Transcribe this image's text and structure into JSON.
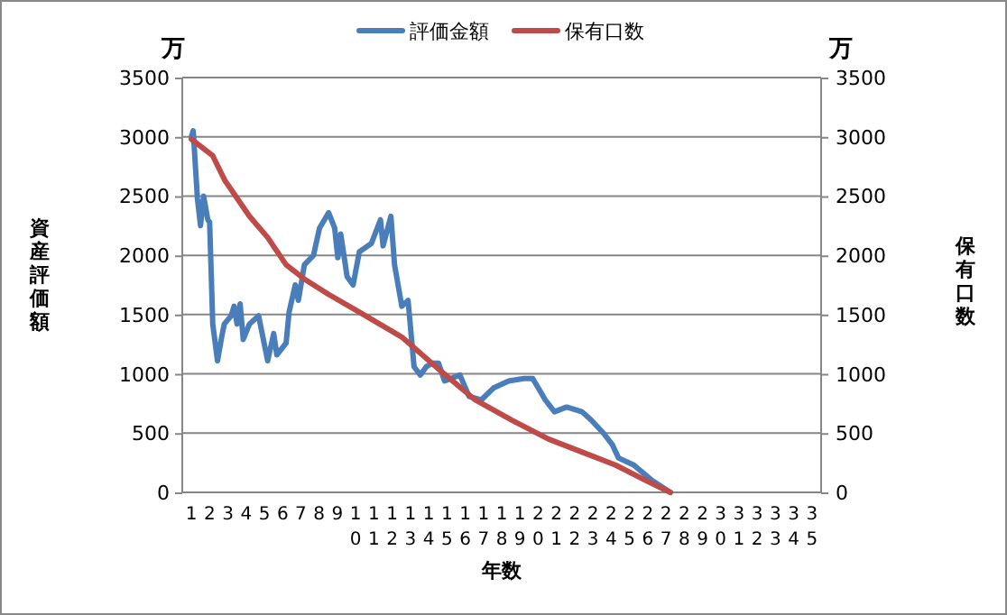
{
  "chart_data": {
    "type": "line",
    "xlabel": "年数",
    "ylabel": "資産評価額",
    "y2label": "保有口数",
    "annotations": [
      "万",
      "万"
    ],
    "xlim": [
      0.5,
      35.5
    ],
    "xticks": [
      1,
      2,
      3,
      4,
      5,
      6,
      7,
      8,
      9,
      10,
      11,
      12,
      13,
      14,
      15,
      16,
      17,
      18,
      19,
      20,
      21,
      22,
      23,
      24,
      25,
      26,
      27,
      28,
      29,
      30,
      31,
      32,
      33,
      34,
      35
    ],
    "ylim": [
      0,
      3500
    ],
    "yticks": [
      0,
      500,
      1000,
      1500,
      2000,
      2500,
      3000,
      3500
    ],
    "y2lim": [
      0,
      3500
    ],
    "y2ticks": [
      0,
      500,
      1000,
      1500,
      2000,
      2500,
      3000,
      3500
    ],
    "grid": "y",
    "legend": "top",
    "series": [
      {
        "name": "評価金額",
        "color": "#4a7ebb",
        "x": [
          1.0,
          1.1,
          1.33,
          1.5,
          1.67,
          1.9,
          2.0,
          2.17,
          2.43,
          2.67,
          2.8,
          3.18,
          3.34,
          3.5,
          3.67,
          3.84,
          4.18,
          4.68,
          5.18,
          5.51,
          5.68,
          6.19,
          6.35,
          6.69,
          6.86,
          7.19,
          7.69,
          8.02,
          8.52,
          8.85,
          9.02,
          9.18,
          9.53,
          9.86,
          10.2,
          10.86,
          11.36,
          11.5,
          11.93,
          12.13,
          12.53,
          12.87,
          13.2,
          13.54,
          13.87,
          14.2,
          14.54,
          14.87,
          15.71,
          16.21,
          16.88,
          17.55,
          18.38,
          19.22,
          19.7,
          20.39,
          20.89,
          21.56,
          22.4,
          22.9,
          23.57,
          24.07,
          24.4,
          25.24,
          26.24,
          27.24
        ],
        "values": [
          3000,
          3050,
          2480,
          2250,
          2500,
          2300,
          2280,
          1420,
          1110,
          1320,
          1420,
          1490,
          1570,
          1420,
          1590,
          1290,
          1420,
          1490,
          1110,
          1340,
          1160,
          1260,
          1520,
          1750,
          1620,
          1920,
          2000,
          2230,
          2360,
          2230,
          1980,
          2180,
          1820,
          1750,
          2030,
          2100,
          2300,
          2080,
          2330,
          1920,
          1570,
          1620,
          1060,
          990,
          1060,
          1090,
          1090,
          940,
          990,
          810,
          780,
          880,
          940,
          960,
          960,
          780,
          680,
          720,
          680,
          610,
          500,
          400,
          290,
          230,
          100,
          0
        ]
      },
      {
        "name": "保有口数",
        "color": "#be4b48",
        "x": [
          1.0,
          2.17,
          2.84,
          4.18,
          5.18,
          6.19,
          7.19,
          8.52,
          10.2,
          12.2,
          12.53,
          14.54,
          16.55,
          18.55,
          20.56,
          22.57,
          24.24,
          25.9,
          27.24
        ],
        "values": [
          2980,
          2840,
          2630,
          2330,
          2150,
          1920,
          1800,
          1670,
          1520,
          1340,
          1310,
          1040,
          780,
          610,
          450,
          330,
          230,
          100,
          0
        ]
      }
    ]
  }
}
